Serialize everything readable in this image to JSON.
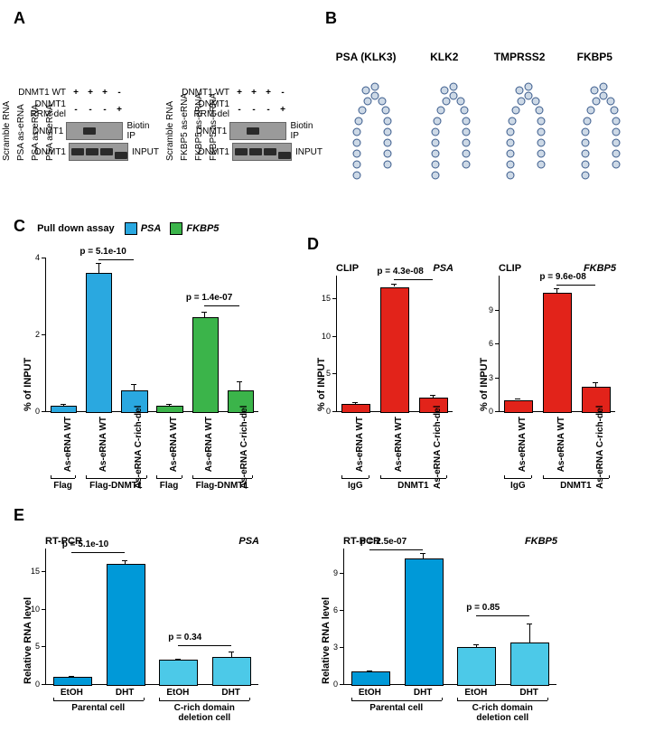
{
  "panels": {
    "A": {
      "label": "A",
      "leftBlot": {
        "col_labels": [
          "Scramble RNA",
          "PSA as-eRNA",
          "PSA as-eRNA",
          "PSA as-eRNA"
        ],
        "row1_label": "DNMT1 WT",
        "row1_pm": [
          "+",
          "+",
          "+",
          "-"
        ],
        "row2_label": "DNMT1 RRM-del",
        "row2_pm": [
          "-",
          "-",
          "-",
          "+"
        ],
        "blot_rows": [
          {
            "left": "DNMT1",
            "right": "Biotin IP",
            "bands": [
              {
                "x": 18,
                "w": 14
              }
            ]
          },
          {
            "left": "DNMT1",
            "right": "INPUT",
            "bands": [
              {
                "x": 2,
                "w": 14
              },
              {
                "x": 18,
                "w": 14
              },
              {
                "x": 34,
                "w": 14
              },
              {
                "x": 50,
                "w": 14,
                "top": 9
              }
            ]
          }
        ]
      },
      "rightBlot": {
        "col_labels": [
          "Scramble RNA",
          "FKBP5 as-eRNA",
          "FKBP5 as-eRNA",
          "FKBP5 as-eRNA"
        ],
        "row1_label": "DNMT1 WT",
        "row1_pm": [
          "+",
          "+",
          "+",
          "-"
        ],
        "row2_label": "DNMT1 RRM-del",
        "row2_pm": [
          "-",
          "-",
          "-",
          "+"
        ],
        "blot_rows": [
          {
            "left": "DNMT1",
            "right": "Biotin IP",
            "bands": [
              {
                "x": 18,
                "w": 14
              }
            ]
          },
          {
            "left": "DNMT1",
            "right": "INPUT",
            "bands": [
              {
                "x": 2,
                "w": 14
              },
              {
                "x": 18,
                "w": 14
              },
              {
                "x": 34,
                "w": 14
              },
              {
                "x": 50,
                "w": 14,
                "top": 9
              }
            ]
          }
        ]
      }
    },
    "B": {
      "label": "B",
      "structs": [
        {
          "title": "PSA (KLK3)"
        },
        {
          "title": "KLK2"
        },
        {
          "title": "TMPRSS2"
        },
        {
          "title": "FKBP5"
        }
      ]
    },
    "C": {
      "label": "C",
      "title": "Pull down assay",
      "legend": [
        {
          "label": "PSA",
          "color": "#2aa8e0"
        },
        {
          "label": "FKBP5",
          "color": "#3bb44a"
        }
      ],
      "ylabel": "% of INPUT",
      "ymax": 4,
      "ytick": 2,
      "colors": {
        "PSA": "#2aa8e0",
        "FKBP5": "#3bb44a"
      },
      "bars": [
        {
          "v": 0.15,
          "c": "#2aa8e0",
          "e": 0.03
        },
        {
          "v": 3.6,
          "c": "#2aa8e0",
          "e": 0.25
        },
        {
          "v": 0.55,
          "c": "#2aa8e0",
          "e": 0.15
        },
        {
          "v": 0.15,
          "c": "#3bb44a",
          "e": 0.03
        },
        {
          "v": 2.45,
          "c": "#3bb44a",
          "e": 0.15
        },
        {
          "v": 0.55,
          "c": "#3bb44a",
          "e": 0.22
        }
      ],
      "xlabels_rot": [
        "As-eRNA WT",
        "As-eRNA WT",
        "As-eRNA C-rich-del",
        "As-eRNA WT",
        "As-eRNA WT",
        "As-eRNA C-rich-del"
      ],
      "groups": [
        {
          "text": "Flag",
          "s": 0,
          "e": 0
        },
        {
          "text": "Flag-DNMT1",
          "s": 1,
          "e": 2
        },
        {
          "text": "Flag",
          "s": 3,
          "e": 3
        },
        {
          "text": "Flag-DNMT1",
          "s": 4,
          "e": 5
        }
      ],
      "pvals": [
        {
          "text": "p = 5.1e-10",
          "s": 1,
          "e": 2,
          "y": 3.95
        },
        {
          "text": "p = 1.4e-07",
          "s": 4,
          "e": 5,
          "y": 2.75
        }
      ]
    },
    "D": {
      "label": "D",
      "charts": [
        {
          "title": "CLIP",
          "gene": "PSA",
          "color": "#e2231a",
          "ylabel": "% of INPUT",
          "ymax": 18,
          "ytick": 5,
          "yticks": [
            0,
            5,
            10,
            15
          ],
          "bars": [
            {
              "v": 1.0,
              "e": 0.2
            },
            {
              "v": 16.5,
              "e": 0.4
            },
            {
              "v": 1.8,
              "e": 0.4
            }
          ],
          "xlabels_rot": [
            "As-eRNA WT",
            "As-eRNA WT",
            "As-eRNA C-rich-del"
          ],
          "groups": [
            {
              "text": "IgG",
              "s": 0,
              "e": 0
            },
            {
              "text": "DNMT1",
              "s": 1,
              "e": 2
            }
          ],
          "pval": {
            "text": "p = 4.3e-08",
            "s": 1,
            "e": 2,
            "y": 17.5
          }
        },
        {
          "title": "CLIP",
          "gene": "FKBP5",
          "color": "#e2231a",
          "ylabel": "% of INPUT",
          "ymax": 12,
          "ytick": 3,
          "yticks": [
            0,
            3,
            6,
            9
          ],
          "bars": [
            {
              "v": 1.0,
              "e": 0.15
            },
            {
              "v": 10.5,
              "e": 0.4
            },
            {
              "v": 2.2,
              "e": 0.4
            }
          ],
          "xlabels_rot": [
            "As-eRNA WT",
            "As-eRNA WT",
            "As-eRNA C-rich-del"
          ],
          "groups": [
            {
              "text": "IgG",
              "s": 0,
              "e": 0
            },
            {
              "text": "DNMT1",
              "s": 1,
              "e": 2
            }
          ],
          "pval": {
            "text": "p = 9.6e-08",
            "s": 1,
            "e": 2,
            "y": 11.2
          }
        }
      ]
    },
    "E": {
      "label": "E",
      "charts": [
        {
          "title": "RT-PCR",
          "gene": "PSA",
          "ylabel": "Relative RNA level",
          "ymax": 18,
          "yticks": [
            0,
            5,
            10,
            15
          ],
          "bars": [
            {
              "v": 1.0,
              "c": "#0099d8",
              "e": 0.1
            },
            {
              "v": 16.0,
              "c": "#0099d8",
              "e": 0.5
            },
            {
              "v": 3.2,
              "c": "#4cc9e8",
              "e": 0.2
            },
            {
              "v": 3.6,
              "c": "#4cc9e8",
              "e": 0.7
            }
          ],
          "xlabels": [
            "EtOH",
            "DHT",
            "EtOH",
            "DHT"
          ],
          "groups": [
            {
              "text": "Parental cell",
              "s": 0,
              "e": 1
            },
            {
              "text": "C-rich domain deletion cell",
              "s": 2,
              "e": 3
            }
          ],
          "pvals": [
            {
              "text": "p = 5.1e-10",
              "s": 0,
              "e": 1,
              "y": 17.5
            },
            {
              "text": "p = 0.34",
              "s": 2,
              "e": 3,
              "y": 5.2
            }
          ]
        },
        {
          "title": "RT-PCR",
          "gene": "FKBP5",
          "ylabel": "Relative RNA level",
          "ymax": 11,
          "yticks": [
            0,
            3,
            6,
            9
          ],
          "bars": [
            {
              "v": 1.0,
              "c": "#0099d8",
              "e": 0.1
            },
            {
              "v": 10.2,
              "c": "#0099d8",
              "e": 0.4
            },
            {
              "v": 3.0,
              "c": "#4cc9e8",
              "e": 0.2
            },
            {
              "v": 3.4,
              "c": "#4cc9e8",
              "e": 1.5
            }
          ],
          "xlabels": [
            "EtOH",
            "DHT",
            "EtOH",
            "DHT"
          ],
          "groups": [
            {
              "text": "Parental cell",
              "s": 0,
              "e": 1
            },
            {
              "text": "C-rich domain deletion cell",
              "s": 2,
              "e": 3
            }
          ],
          "pvals": [
            {
              "text": "p = 2.5e-07",
              "s": 0,
              "e": 1,
              "y": 10.9
            },
            {
              "text": "p = 0.85",
              "s": 2,
              "e": 3,
              "y": 5.6
            }
          ]
        }
      ]
    }
  }
}
